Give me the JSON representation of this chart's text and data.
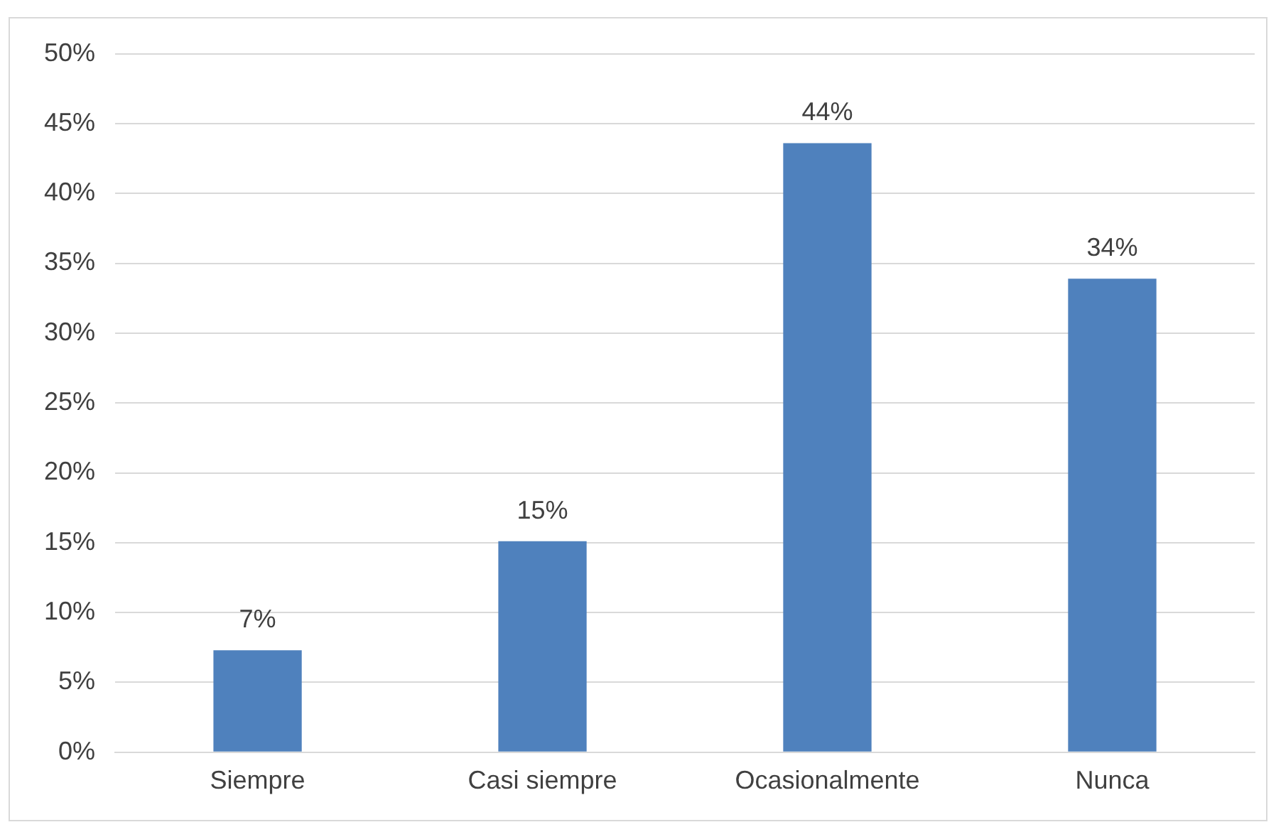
{
  "chart_data": {
    "type": "bar",
    "categories": [
      "Siempre",
      "Casi siempre",
      "Ocasionalmente",
      "Nunca"
    ],
    "values": [
      7.3,
      15.1,
      43.6,
      33.9
    ],
    "value_labels": [
      "7%",
      "15%",
      "44%",
      "34%"
    ],
    "color": "#4f81bd",
    "ylim": [
      0,
      50
    ],
    "yticks": [
      {
        "value": 0,
        "label": "0%"
      },
      {
        "value": 5,
        "label": "5%"
      },
      {
        "value": 10,
        "label": "10%"
      },
      {
        "value": 15,
        "label": "15%"
      },
      {
        "value": 20,
        "label": "20%"
      },
      {
        "value": 25,
        "label": "25%"
      },
      {
        "value": 30,
        "label": "30%"
      },
      {
        "value": 35,
        "label": "35%"
      },
      {
        "value": 40,
        "label": "40%"
      },
      {
        "value": 45,
        "label": "45%"
      },
      {
        "value": 50,
        "label": "50%"
      }
    ],
    "grid": "y",
    "legend": false
  }
}
